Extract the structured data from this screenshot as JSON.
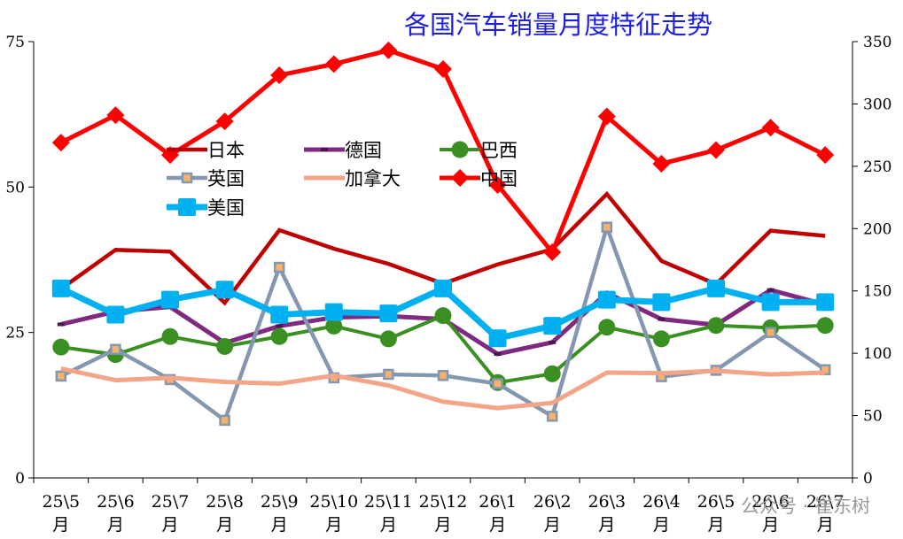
{
  "chart_data": {
    "type": "line",
    "title": "各国汽车销量月度特征走势",
    "categories": [
      "25\\5月",
      "25\\6月",
      "25\\7月",
      "25\\8月",
      "25\\9月",
      "25\\10月",
      "25\\11月",
      "25\\12月",
      "26\\1月",
      "26\\2月",
      "26\\3月",
      "26\\4月",
      "26\\5月",
      "26\\6月",
      "26\\7月"
    ],
    "category_lines": [
      [
        "25\\5",
        "月"
      ],
      [
        "25\\6",
        "月"
      ],
      [
        "25\\7",
        "月"
      ],
      [
        "25\\8",
        "月"
      ],
      [
        "25\\9",
        "月"
      ],
      [
        "25\\10",
        "月"
      ],
      [
        "25\\11",
        "月"
      ],
      [
        "25\\12",
        "月"
      ],
      [
        "26\\1",
        "月"
      ],
      [
        "26\\2",
        "月"
      ],
      [
        "26\\3",
        "月"
      ],
      [
        "26\\4",
        "月"
      ],
      [
        "26\\5",
        "月"
      ],
      [
        "26\\6",
        "月"
      ],
      [
        "26\\7",
        "月"
      ]
    ],
    "y_left": {
      "min": 0,
      "max": 75,
      "ticks": [
        0,
        25,
        50,
        75
      ]
    },
    "y_right": {
      "min": 0,
      "max": 350,
      "ticks": [
        0,
        50,
        100,
        150,
        200,
        250,
        300,
        350
      ]
    },
    "legend_placement": "upper-left inside plot, three columns",
    "series": [
      {
        "name": "日本",
        "axis": "left",
        "color": "#c00000",
        "marker": "none",
        "width": 4.5,
        "values": [
          32.5,
          39.2,
          38.9,
          30.1,
          42.6,
          39.4,
          36.8,
          33.4,
          36.7,
          39.3,
          48.8,
          37.3,
          33.3,
          42.5,
          41.6
        ]
      },
      {
        "name": "德国",
        "axis": "left",
        "color": "#7f2a80",
        "marker": "dash",
        "width": 5,
        "values": [
          26.4,
          28.6,
          29.4,
          23.2,
          26.1,
          27.6,
          27.8,
          27.3,
          21.3,
          23.3,
          31.8,
          27.3,
          26.3,
          32.3,
          29.8
        ]
      },
      {
        "name": "巴西",
        "axis": "left",
        "color": "#3a8f22",
        "marker": "circle",
        "width": 4,
        "values": [
          22.5,
          21.2,
          24.3,
          22.6,
          24.3,
          26.1,
          23.9,
          27.9,
          16.4,
          17.9,
          25.9,
          23.9,
          26.2,
          25.8,
          26.2
        ]
      },
      {
        "name": "英国",
        "axis": "left",
        "color": "#8497b0",
        "marker": "square",
        "width": 4.5,
        "values": [
          17.5,
          22.1,
          16.9,
          9.9,
          36.2,
          17.2,
          17.8,
          17.6,
          16.2,
          10.6,
          43.1,
          17.4,
          18.5,
          25.0,
          18.6
        ]
      },
      {
        "name": "加拿大",
        "axis": "left",
        "color": "#f4a487",
        "marker": "none",
        "width": 5,
        "values": [
          18.8,
          16.8,
          17.2,
          16.5,
          16.2,
          17.6,
          15.9,
          13.1,
          12.0,
          12.9,
          18.1,
          18.0,
          18.4,
          17.8,
          18.1
        ]
      },
      {
        "name": "中国",
        "axis": "right",
        "color": "#ff0000",
        "marker": "diamond",
        "width": 5,
        "values": [
          269,
          291,
          259,
          286,
          323,
          332,
          343,
          328,
          235,
          181,
          290,
          252,
          263,
          281,
          259
        ]
      },
      {
        "name": "美国",
        "axis": "right",
        "color": "#00b0f0",
        "marker": "square",
        "width": 7,
        "values": [
          152,
          131,
          143,
          151,
          131,
          133,
          132,
          152,
          112,
          122,
          143,
          141,
          152,
          141,
          141
        ]
      }
    ]
  },
  "watermark": "公众号 · 崔东树"
}
